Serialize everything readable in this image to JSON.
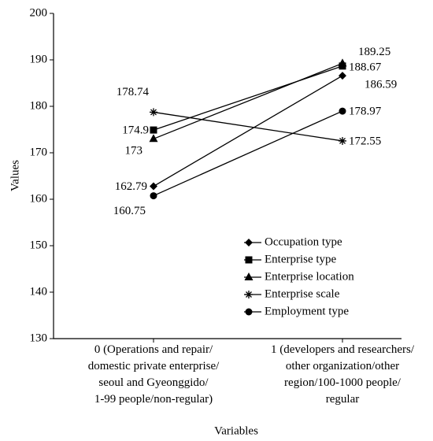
{
  "chart_data": {
    "type": "line",
    "xlabel": "Variables",
    "ylabel": "Values",
    "categories": [
      "0 (Operations and repair/\ndomestic private enterprise/\nseoul and Gyeonggido/\n1-99 people/non-regular)",
      "1 (developers and researchers/\nother organization/other\nregion/100-1000 people/\nregular"
    ],
    "series": [
      {
        "name": "Occupation type",
        "marker": "diamond",
        "color": "#000000",
        "values": [
          162.79,
          186.59
        ]
      },
      {
        "name": "Enterprise type",
        "marker": "square",
        "color": "#000000",
        "values": [
          174.9,
          188.67
        ]
      },
      {
        "name": "Enterprise location",
        "marker": "triangle",
        "color": "#000000",
        "values": [
          173,
          189.25
        ]
      },
      {
        "name": "Enterprise scale",
        "marker": "star",
        "color": "#000000",
        "values": [
          178.74,
          172.55
        ]
      },
      {
        "name": "Employment type",
        "marker": "circle",
        "color": "#000000",
        "values": [
          160.75,
          178.97
        ]
      }
    ],
    "ylim": [
      130,
      200
    ],
    "yticks": [
      130,
      140,
      150,
      160,
      170,
      180,
      190,
      200
    ],
    "grid": false,
    "legend": "lower right"
  }
}
